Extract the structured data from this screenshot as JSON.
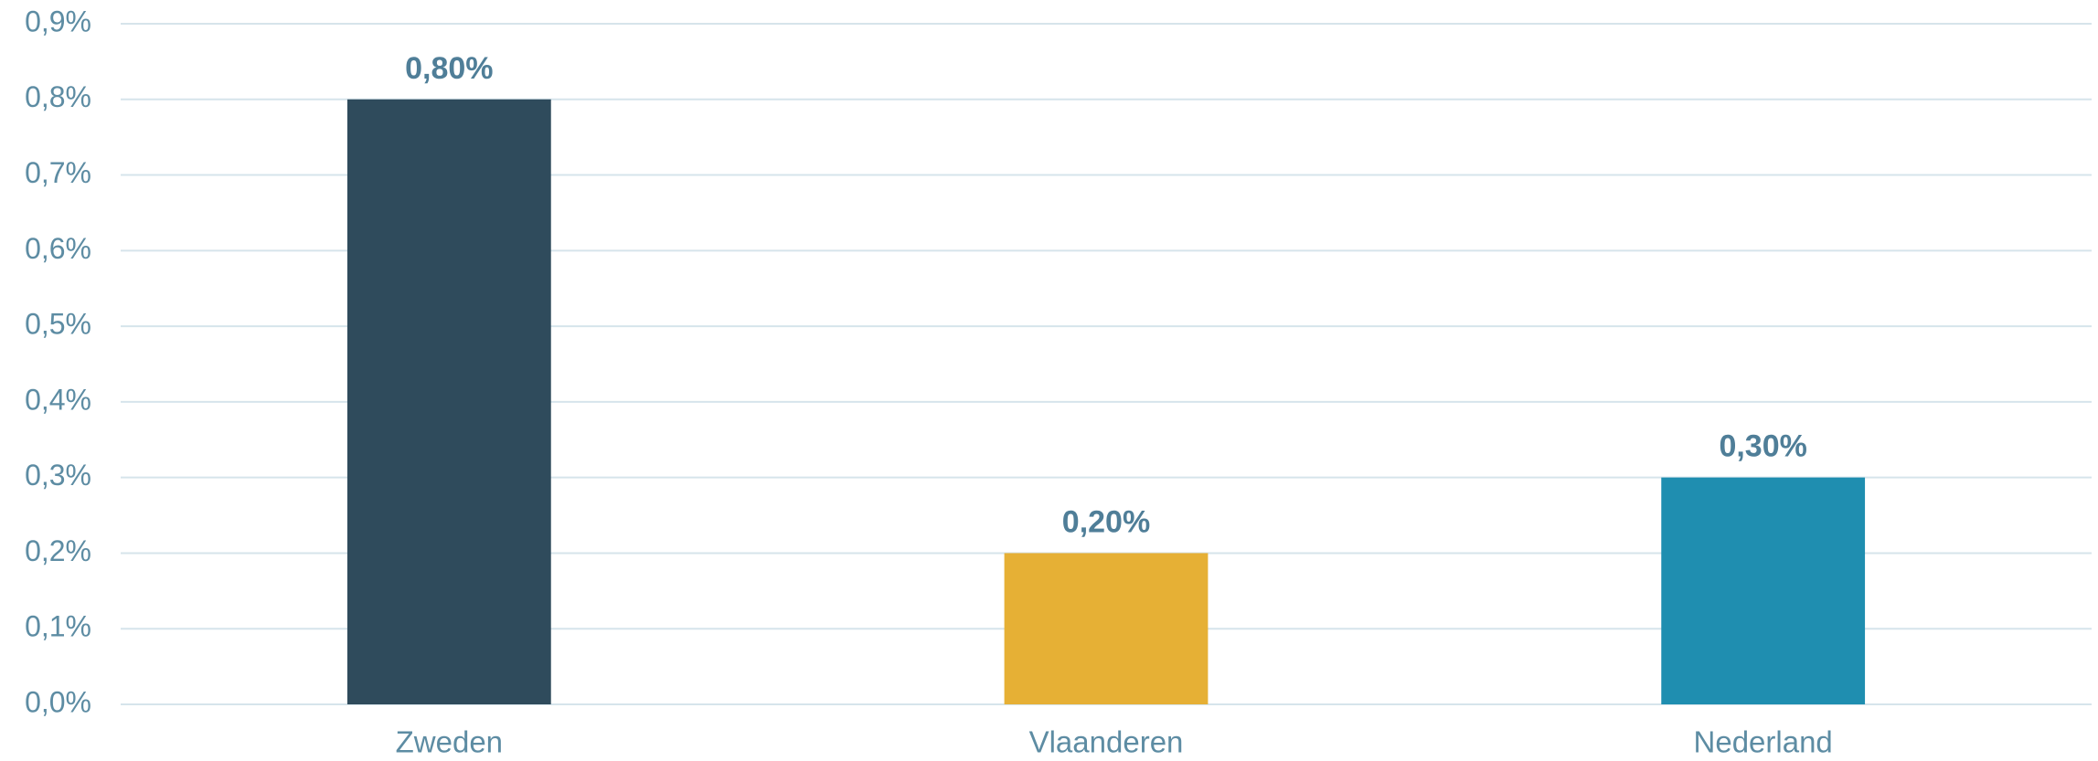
{
  "chart_data": {
    "type": "bar",
    "categories": [
      "Zweden",
      "Vlaanderen",
      "Nederland"
    ],
    "values": [
      0.8,
      0.2,
      0.3
    ],
    "value_labels": [
      "0,80%",
      "0,20%",
      "0,30%"
    ],
    "colors": [
      "#2f4b5c",
      "#e6b035",
      "#1f8eb0"
    ],
    "ylim": [
      0,
      0.9
    ],
    "yticks": [
      {
        "value": 0,
        "label": "0,0%"
      },
      {
        "value": 0.1,
        "label": "0,1%"
      },
      {
        "value": 0.2,
        "label": "0,2%"
      },
      {
        "value": 0.3,
        "label": "0,3%"
      },
      {
        "value": 0.4,
        "label": "0,4%"
      },
      {
        "value": 0.5,
        "label": "0,5%"
      },
      {
        "value": 0.6,
        "label": "0,6%"
      },
      {
        "value": 0.7,
        "label": "0,7%"
      },
      {
        "value": 0.8,
        "label": "0,8%"
      },
      {
        "value": 0.9,
        "label": "0,9%"
      }
    ],
    "grid": true
  }
}
